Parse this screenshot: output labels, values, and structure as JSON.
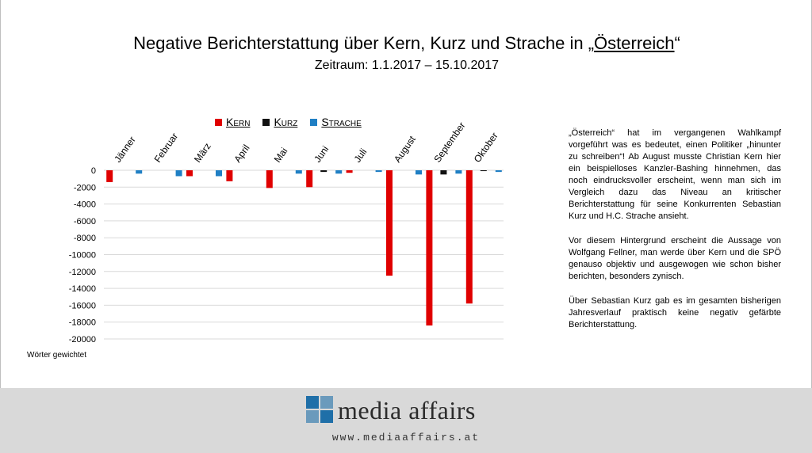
{
  "title": {
    "prefix": "Negative Berichterstattung über Kern, Kurz und Strache in „",
    "underlined": "Österreich",
    "suffix": "“"
  },
  "subtitle": "Zeitraum: 1.1.2017 – 15.10.2017",
  "chart_data": {
    "type": "bar",
    "categories": [
      "Jänner",
      "Februar",
      "März",
      "April",
      "Mai",
      "Juni",
      "Juli",
      "August",
      "September",
      "Oktober"
    ],
    "series": [
      {
        "name": "Kern",
        "color": "#e00000",
        "values": [
          -1400,
          0,
          -700,
          -1300,
          -2100,
          -2000,
          -300,
          -12500,
          -18400,
          -15800
        ]
      },
      {
        "name": "Kurz",
        "color": "#111111",
        "values": [
          0,
          0,
          0,
          0,
          0,
          -200,
          0,
          0,
          -500,
          -100
        ]
      },
      {
        "name": "Strache",
        "color": "#1f7fc4",
        "values": [
          -400,
          -700,
          -700,
          0,
          -400,
          -400,
          -200,
          -500,
          -400,
          -200
        ]
      }
    ],
    "yticks": [
      0,
      -2000,
      -4000,
      -6000,
      -8000,
      -10000,
      -12000,
      -14000,
      -16000,
      -18000,
      -20000
    ],
    "ylim": [
      -20000,
      0
    ],
    "ylabel_note": "Wörter gewichtet",
    "legend_position": "top"
  },
  "legend": [
    {
      "label": "Kern",
      "color": "#e00000"
    },
    {
      "label": "Kurz",
      "color": "#111111"
    },
    {
      "label": "Strache",
      "color": "#1f7fc4"
    }
  ],
  "side_text": {
    "p1": "„Österreich“ hat im vergangenen Wahlkampf vorgeführt was es bedeutet, einen Politiker „hinunter zu schreiben“! Ab August musste Christian Kern hier ein beispielloses Kanzler-Bashing hinnehmen, das noch eindrucksvoller erscheint, wenn man sich im Vergleich dazu das Niveau an kritischer Berichterstattung für seine Konkurrenten Sebastian Kurz und H.C. Strache ansieht.",
    "p2": "Vor diesem Hintergrund erscheint die Aussage von Wolfgang Fellner, man werde über Kern und die SPÖ genauso objektiv und ausgewogen wie schon bisher berichten, besonders zynisch.",
    "p3": "Über Sebastian Kurz gab es im gesamten bisherigen Jahresverlauf praktisch keine negativ gefärbte Berichterstattung."
  },
  "footer": {
    "brand": "media affairs",
    "url": "www.mediaaffairs.at",
    "logo_color": "#1f6fa8"
  }
}
